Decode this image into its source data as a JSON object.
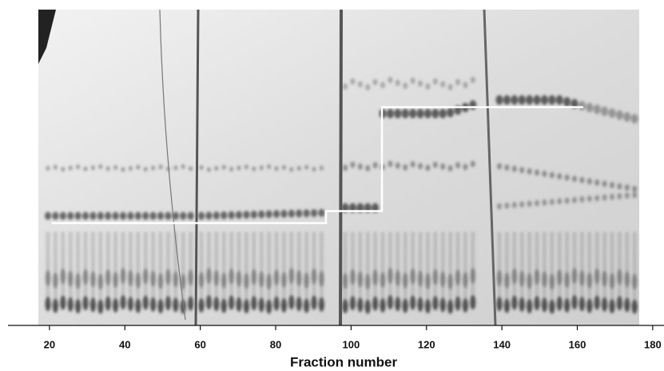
{
  "chart_data": {
    "type": "gel",
    "xlabel": "Fraction number",
    "xlim": [
      9,
      183
    ],
    "xticks": [
      20,
      40,
      60,
      80,
      100,
      120,
      140,
      160,
      180
    ]
  }
}
